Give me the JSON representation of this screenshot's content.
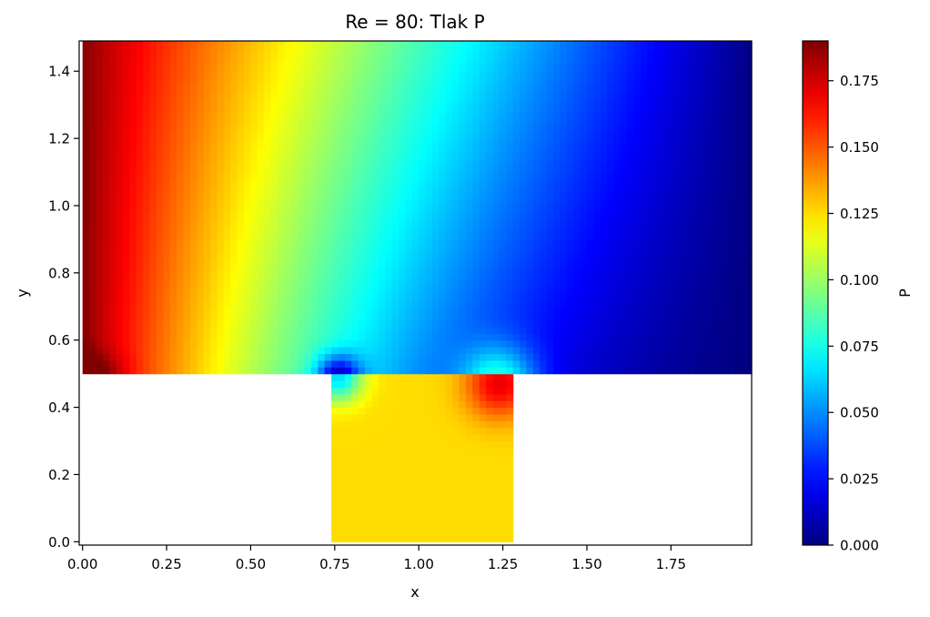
{
  "chart_data": {
    "type": "heatmap",
    "title": "Re = 80: Tlak P",
    "xlabel": "x",
    "ylabel": "y",
    "xlim": [
      -0.01,
      1.99
    ],
    "ylim": [
      -0.01,
      1.49
    ],
    "x_ticks": [
      0.0,
      0.25,
      0.5,
      0.75,
      1.0,
      1.25,
      1.5,
      1.75
    ],
    "x_tick_labels": [
      "0.00",
      "0.25",
      "0.50",
      "0.75",
      "1.00",
      "1.25",
      "1.50",
      "1.75"
    ],
    "y_ticks": [
      0.0,
      0.2,
      0.4,
      0.6,
      0.8,
      1.0,
      1.2,
      1.4
    ],
    "y_tick_labels": [
      "0.0",
      "0.2",
      "0.4",
      "0.6",
      "0.8",
      "1.0",
      "1.2",
      "1.4"
    ],
    "colormap": "jet",
    "colorbar": {
      "label": "P",
      "range": [
        0.0,
        0.19
      ],
      "ticks": [
        0.0,
        0.025,
        0.05,
        0.075,
        0.1,
        0.125,
        0.15,
        0.175
      ],
      "tick_labels": [
        "0.000",
        "0.025",
        "0.050",
        "0.075",
        "0.100",
        "0.125",
        "0.150",
        "0.175"
      ]
    },
    "domain": {
      "channel": {
        "x": [
          0.0,
          2.0
        ],
        "y": [
          0.5,
          1.5
        ]
      },
      "cavity": {
        "x": [
          0.74,
          1.28
        ],
        "y": [
          0.0,
          0.5
        ]
      }
    },
    "grid": {
      "dx": 0.02,
      "dy": 0.02
    },
    "pressure_features": {
      "inlet_top_left_max": 0.19,
      "outlet_right_min": 0.0,
      "low_pressure_vortex": {
        "x": 0.76,
        "y": 0.49,
        "value": 0.06
      },
      "high_pressure_corner": {
        "x": 1.24,
        "y": 0.47,
        "value": 0.17
      },
      "cavity_interior": 0.125
    }
  }
}
